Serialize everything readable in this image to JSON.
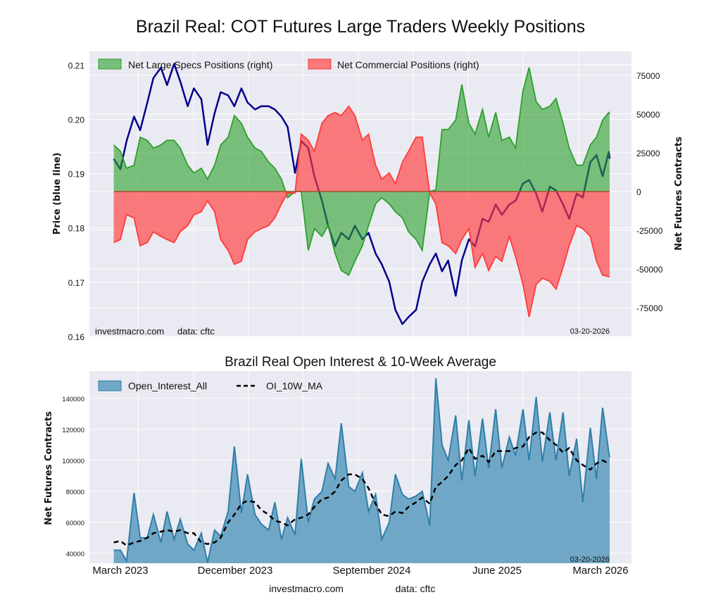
{
  "chart_data": [
    {
      "type": "line+area",
      "title": "Brazil Real: COT Futures Large Traders Weekly Positions",
      "ylabel_left": "Price (blue line)",
      "ylabel_right": "Net Futures Contracts",
      "ylim_left": [
        0.16,
        0.2125
      ],
      "ylim_right": [
        -93600,
        90400
      ],
      "yticks_left": [
        "0.16",
        "0.17",
        "0.18",
        "0.19",
        "0.20",
        "0.21"
      ],
      "yticks_right": [
        "-75000",
        "-50000",
        "-25000",
        "0",
        "25000",
        "50000",
        "75000"
      ],
      "grid": true,
      "legend_position": "top-left",
      "colors": {
        "price": "#00008b",
        "specs": "#2ca02c",
        "commercial": "#ff3b3b"
      },
      "watermark": "investmacro.com",
      "source": "data: cftc",
      "date_label": "03-20-2026",
      "x": [
        "2023-02-14",
        "2023-03-01",
        "2023-03-15",
        "2023-04-01",
        "2023-04-15",
        "2023-05-01",
        "2023-05-15",
        "2023-06-01",
        "2023-06-15",
        "2023-07-01",
        "2023-07-15",
        "2023-08-01",
        "2023-08-15",
        "2023-09-01",
        "2023-09-15",
        "2023-10-01",
        "2023-10-15",
        "2023-11-01",
        "2023-11-15",
        "2023-12-01",
        "2023-12-15",
        "2024-01-01",
        "2024-01-15",
        "2024-02-01",
        "2024-02-15",
        "2024-03-01",
        "2024-03-15",
        "2024-04-01",
        "2024-04-15",
        "2024-05-01",
        "2024-05-15",
        "2024-06-01",
        "2024-06-15",
        "2024-07-01",
        "2024-07-15",
        "2024-08-01",
        "2024-08-15",
        "2024-09-01",
        "2024-09-15",
        "2024-10-01",
        "2024-10-15",
        "2024-11-01",
        "2024-11-15",
        "2024-12-01",
        "2024-12-15",
        "2025-01-01",
        "2025-01-15",
        "2025-02-01",
        "2025-02-15",
        "2025-03-01",
        "2025-03-15",
        "2025-04-01",
        "2025-04-15",
        "2025-05-01",
        "2025-05-15",
        "2025-06-01",
        "2025-06-15",
        "2025-07-01",
        "2025-07-15",
        "2025-08-01",
        "2025-08-15",
        "2025-09-01",
        "2025-09-15",
        "2025-10-01",
        "2025-10-15",
        "2025-11-01",
        "2025-11-15",
        "2025-12-01",
        "2025-12-15",
        "2026-01-01",
        "2026-01-15",
        "2026-02-01",
        "2026-02-15",
        "2026-03-01",
        "2026-03-15",
        "2026-03-17"
      ],
      "series": [
        {
          "name": "Price",
          "axis": "left",
          "values": [
            0.1927,
            0.1908,
            0.196,
            0.2005,
            0.198,
            0.203,
            0.2076,
            0.2095,
            0.2063,
            0.2102,
            0.207,
            0.2024,
            0.2057,
            0.2037,
            0.1953,
            0.2011,
            0.205,
            0.2044,
            0.2024,
            0.2057,
            0.2031,
            0.2018,
            0.2024,
            0.2024,
            0.2018,
            0.2005,
            0.1986,
            0.1901,
            0.196,
            0.1947,
            0.1895,
            0.185,
            0.1804,
            0.1766,
            0.1791,
            0.1779,
            0.1804,
            0.1779,
            0.1791,
            0.1753,
            0.1733,
            0.1701,
            0.1649,
            0.1623,
            0.1636,
            0.1649,
            0.1701,
            0.1733,
            0.1753,
            0.172,
            0.174,
            0.1675,
            0.174,
            0.1779,
            0.1766,
            0.1817,
            0.1811,
            0.1843,
            0.1824,
            0.1843,
            0.185,
            0.1882,
            0.1888,
            0.1863,
            0.183,
            0.1876,
            0.1869,
            0.1843,
            0.1817,
            0.1863,
            0.1856,
            0.1921,
            0.1934,
            0.1895,
            0.194,
            0.1927
          ]
        },
        {
          "name": "Net Large Specs Positions (right)",
          "axis": "right",
          "values": [
            30000,
            26000,
            15000,
            17000,
            35000,
            33000,
            28000,
            30000,
            33000,
            33000,
            28000,
            17000,
            12000,
            15000,
            8000,
            17000,
            30000,
            35000,
            49000,
            44000,
            35000,
            28000,
            26000,
            19000,
            15000,
            8000,
            -4000,
            0,
            0,
            -38000,
            -24000,
            -29000,
            -22000,
            -40000,
            -51000,
            -54000,
            -45000,
            -35000,
            -22000,
            -8000,
            -4000,
            -8000,
            -13000,
            -17000,
            -26000,
            -31000,
            -38000,
            0,
            1000,
            40000,
            40000,
            46000,
            69000,
            44000,
            37000,
            53000,
            35000,
            51000,
            33000,
            35000,
            28000,
            65000,
            80000,
            58000,
            53000,
            55000,
            60000,
            44000,
            28000,
            17000,
            17000,
            30000,
            35000,
            46000,
            51000,
            50000
          ]
        },
        {
          "name": "Net Commercial Positions (right)",
          "axis": "right",
          "values": [
            -33000,
            -31000,
            -15000,
            -17000,
            -35000,
            -33000,
            -26000,
            -29000,
            -31000,
            -33000,
            -26000,
            -22000,
            -15000,
            -13000,
            -6000,
            -13000,
            -31000,
            -38000,
            -47000,
            -45000,
            -31000,
            -26000,
            -24000,
            -22000,
            -17000,
            -8000,
            -1000,
            -1000,
            37000,
            33000,
            26000,
            44000,
            49000,
            51000,
            49000,
            55000,
            49000,
            33000,
            37000,
            17000,
            8000,
            12000,
            5000,
            19000,
            26000,
            35000,
            35000,
            -1000,
            -8000,
            -33000,
            -35000,
            -40000,
            -31000,
            -24000,
            -49000,
            -40000,
            -51000,
            -42000,
            -45000,
            -29000,
            -42000,
            -60000,
            -81000,
            -60000,
            -56000,
            -58000,
            -63000,
            -49000,
            -35000,
            -22000,
            -24000,
            -29000,
            -45000,
            -54000,
            -55000,
            -55000
          ]
        }
      ]
    },
    {
      "type": "area+line",
      "title": "Brazil Real Open Interest & 10-Week Average",
      "ylabel": "Net Futures Contracts",
      "ylim": [
        33600,
        157700
      ],
      "yticks": [
        "40000",
        "60000",
        "80000",
        "100000",
        "120000",
        "140000"
      ],
      "xticks": [
        "March 2023",
        "December 2023",
        "September 2024",
        "June 2025",
        "March 2026"
      ],
      "grid": true,
      "legend_position": "top-left",
      "colors": {
        "oi": "#5b9bc0",
        "oi_line": "#2f7fa8",
        "ma": "#000000"
      },
      "date_label": "03-20-2026",
      "footer": {
        "site": "investmacro.com",
        "source": "data: cftc"
      },
      "series": [
        {
          "name": "Open_Interest_All",
          "values": [
            42000,
            42000,
            35000,
            79000,
            50000,
            50000,
            65000,
            47000,
            67000,
            49000,
            62000,
            46000,
            42000,
            53000,
            34000,
            55000,
            51000,
            67000,
            109000,
            66000,
            91000,
            65000,
            59000,
            55000,
            73000,
            49000,
            63000,
            52000,
            101000,
            60000,
            75000,
            80000,
            98000,
            88000,
            124000,
            83000,
            80000,
            92000,
            67000,
            78000,
            49000,
            60000,
            91000,
            78000,
            75000,
            77000,
            80000,
            58000,
            153000,
            110000,
            100000,
            129000,
            87000,
            126000,
            90000,
            127000,
            95000,
            133000,
            95000,
            115000,
            103000,
            133000,
            100000,
            141000,
            99000,
            131000,
            100000,
            131000,
            90000,
            114000,
            73000,
            121000,
            88000,
            134000,
            105000,
            102000
          ]
        },
        {
          "name": "OI_10W_MA",
          "values": [
            47000,
            48000,
            45000,
            47000,
            48000,
            50000,
            53000,
            54000,
            55000,
            54000,
            55000,
            53000,
            53000,
            47000,
            46000,
            47000,
            50000,
            60000,
            65000,
            72000,
            74000,
            73000,
            68000,
            65000,
            61000,
            60000,
            58000,
            62000,
            63000,
            65000,
            70000,
            75000,
            76000,
            80000,
            87000,
            91000,
            91000,
            88000,
            82000,
            72000,
            65000,
            64000,
            67000,
            66000,
            70000,
            73000,
            76000,
            72000,
            83000,
            86000,
            90000,
            97000,
            100000,
            108000,
            101000,
            103000,
            99000,
            106000,
            106000,
            106000,
            108000,
            109000,
            115000,
            118000,
            118000,
            113000,
            110000,
            105000,
            108000,
            100000,
            97000,
            94000,
            98000,
            100000,
            98000,
            98000
          ]
        }
      ]
    }
  ]
}
